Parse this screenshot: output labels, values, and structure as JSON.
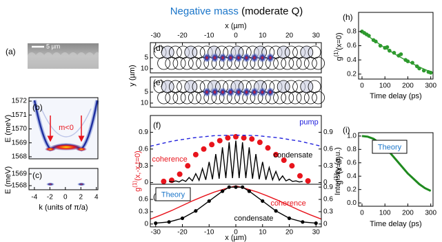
{
  "figure_title": {
    "main": "Negative mass",
    "suffix": "(moderate Q)"
  },
  "chart_data": [
    {
      "type": "image",
      "panel": "(a)",
      "scale_bar": "5 µm"
    },
    {
      "type": "heatmap",
      "panel": "(b)",
      "ylabel": "E (meV)",
      "ylim": [
        1567.85,
        1572.25
      ],
      "yticks": [
        1568,
        1569,
        1570,
        1571,
        1572
      ],
      "annotation": "m<0"
    },
    {
      "type": "heatmap",
      "panel": "(c)",
      "ylabel": "E (meV)",
      "ylim": [
        1567.65,
        1569.47
      ],
      "yticks": [
        1568,
        1569
      ],
      "xlabel": "k (units of π/a)",
      "xlim": [
        -4.7,
        4.2
      ],
      "xticks": [
        -4,
        -2,
        0,
        2,
        4
      ]
    },
    {
      "type": "image",
      "panel": "(d)",
      "ylabel": "y (µm)",
      "ylim": [
        11.9,
        -1.9
      ],
      "yticks": [
        5,
        10
      ],
      "xlabel": "x (µm)",
      "xlim": [
        -32,
        32
      ],
      "xticks": [
        -30,
        -20,
        -10,
        0,
        10,
        20,
        30
      ]
    },
    {
      "type": "image",
      "panel": "(e)",
      "ylim": [
        11.9,
        -1.9
      ],
      "yticks": [
        5,
        10
      ],
      "xlim": [
        -32,
        32
      ]
    },
    {
      "type": "line",
      "panel": "(f)",
      "ylabel": {
        "symbol": "g",
        "sup": "(1)",
        "rest": "(x,-x,t=0)"
      },
      "y2label": "Intensity (a.u.)",
      "xlim": [
        -32,
        32
      ],
      "ylim": [
        -0.03,
        1.2
      ],
      "yticks": [
        0,
        0.3,
        0.6,
        0.9
      ],
      "y2lim": [
        -0.03,
        1.2
      ],
      "y2ticks": [
        0,
        0.3,
        0.6,
        0.9
      ],
      "series": [
        {
          "name": "coherence",
          "color": "#e8141c",
          "style": "markers",
          "x": [
            -27,
            -24,
            -21,
            -18,
            -15,
            -12,
            -9,
            -6,
            -3,
            0,
            3,
            6,
            9,
            12,
            15,
            18,
            21,
            24,
            27
          ],
          "values": [
            0.02,
            0.04,
            0.15,
            0.3,
            0.5,
            0.6,
            0.68,
            0.75,
            0.8,
            0.82,
            0.8,
            0.78,
            0.72,
            0.62,
            0.5,
            0.4,
            0.3,
            0.12,
            0.03
          ]
        },
        {
          "name": "condensate",
          "color": "#000000",
          "style": "line",
          "axis": "y2",
          "x": [
            -25,
            -23.75,
            -22.5,
            -21.25,
            -20,
            -18.75,
            -17.5,
            -16.25,
            -15,
            -13.75,
            -12.5,
            -11.25,
            -10,
            -8.75,
            -7.5,
            -6.25,
            -5,
            -3.75,
            -2.5,
            -1.25,
            0,
            1.25,
            2.5,
            3.75,
            5,
            6.25,
            7.5,
            8.75,
            10,
            11.25,
            12.5,
            13.75,
            15,
            16.25,
            17.5,
            18.75,
            20,
            21.25,
            22.5,
            23.75,
            25
          ],
          "values": [
            0.02,
            0.01,
            0.03,
            0.01,
            0.05,
            0.02,
            0.09,
            0.03,
            0.16,
            0.04,
            0.25,
            0.05,
            0.37,
            0.06,
            0.51,
            0.07,
            0.63,
            0.08,
            0.72,
            0.08,
            0.75,
            0.08,
            0.72,
            0.08,
            0.63,
            0.07,
            0.51,
            0.06,
            0.37,
            0.05,
            0.27,
            0.05,
            0.2,
            0.04,
            0.12,
            0.03,
            0.06,
            0.02,
            0.03,
            0.01,
            0.02
          ]
        },
        {
          "name": "pump",
          "color": "#2222dd",
          "style": "line",
          "dash": true,
          "axis": "y2",
          "x": [
            -32,
            -24,
            -16,
            -8,
            0,
            8,
            16,
            24,
            32
          ],
          "values": [
            0.65,
            0.74,
            0.8,
            0.84,
            0.85,
            0.84,
            0.8,
            0.74,
            0.65
          ]
        }
      ]
    },
    {
      "type": "line",
      "panel": "(g)",
      "annotation": "Theory",
      "xlabel": "x (µm)",
      "xlim": [
        -32,
        32
      ],
      "xticks": [
        -30,
        -20,
        -10,
        0,
        10,
        20,
        30
      ],
      "ylim": [
        -0.07,
        0.97
      ],
      "yticks": [
        0,
        0.3,
        0.6
      ],
      "y2lim": [
        -0.07,
        0.97
      ],
      "y2ticks": [
        0,
        0.3,
        0.6,
        0.9
      ],
      "series": [
        {
          "name": "coherence",
          "color": "#e8141c",
          "style": "line",
          "x": [
            -32,
            -28,
            -24,
            -20,
            -16,
            -12,
            -8,
            -4,
            0,
            4,
            8,
            12,
            16,
            20,
            24,
            28,
            32
          ],
          "values": [
            0.12,
            0.22,
            0.33,
            0.45,
            0.57,
            0.68,
            0.78,
            0.86,
            0.93,
            0.86,
            0.78,
            0.68,
            0.57,
            0.45,
            0.33,
            0.22,
            0.12
          ]
        },
        {
          "name": "condensate",
          "color": "#000000",
          "style": "line+markers",
          "axis": "y2",
          "x": [
            -30,
            -25,
            -20,
            -15,
            -10,
            -5,
            -2.5,
            0,
            2.5,
            5,
            10,
            15,
            20,
            25,
            30
          ],
          "values": [
            0.02,
            0.05,
            0.14,
            0.32,
            0.56,
            0.8,
            0.9,
            0.9,
            0.9,
            0.8,
            0.56,
            0.32,
            0.14,
            0.05,
            0.02
          ]
        }
      ]
    },
    {
      "type": "scatter",
      "panel": "(h)",
      "ylabel": {
        "symbol": "g",
        "sup": "(1)",
        "rest": "(x=0)"
      },
      "xlabel": "Time delay (ps)",
      "xlim": [
        -15,
        310
      ],
      "xticks": [
        0,
        100,
        200,
        300
      ],
      "ylim": [
        0.13,
        1.07
      ],
      "yticks": [
        0.2,
        0.4,
        0.6,
        0.8
      ],
      "series": [
        {
          "color": "#2e9a2e",
          "style": "markers",
          "x": [
            0,
            10,
            20,
            30,
            50,
            60,
            80,
            100,
            110,
            120,
            140,
            160,
            170,
            190,
            200,
            220,
            240,
            250,
            270,
            290,
            300
          ],
          "values": [
            0.8,
            0.78,
            0.76,
            0.74,
            0.68,
            0.66,
            0.6,
            0.57,
            0.58,
            0.53,
            0.5,
            0.46,
            0.48,
            0.4,
            0.38,
            0.36,
            0.31,
            0.28,
            0.25,
            0.23,
            0.22
          ]
        },
        {
          "color": "#2e9a2e",
          "style": "line",
          "x": [
            0,
            50,
            100,
            150,
            200,
            250,
            300
          ],
          "values": [
            0.8,
            0.68,
            0.57,
            0.47,
            0.38,
            0.3,
            0.23
          ]
        }
      ]
    },
    {
      "type": "line",
      "panel": "(i)",
      "annotation": "Theory",
      "ylabel": {
        "symbol": "g",
        "sup": "(1)",
        "rest": "(x=0)"
      },
      "xlabel": "Time delay (ps)",
      "xlim": [
        -15,
        310
      ],
      "xticks": [
        0,
        100,
        200,
        300
      ],
      "ylim": [
        -0.05,
        1.05
      ],
      "yticks": [
        {
          "value": 0,
          "label": "0.0"
        },
        0.2,
        0.4,
        0.6,
        0.8,
        {
          "value": 1,
          "label": "1.0"
        }
      ],
      "series": [
        {
          "color": "#1f8a1f",
          "style": "line",
          "width": 3,
          "x": [
            0,
            25,
            50,
            75,
            100,
            125,
            150,
            175,
            200,
            225,
            250,
            275,
            300
          ],
          "values": [
            1.0,
            0.99,
            0.96,
            0.9,
            0.83,
            0.74,
            0.64,
            0.54,
            0.44,
            0.36,
            0.28,
            0.22,
            0.18
          ]
        }
      ]
    }
  ]
}
